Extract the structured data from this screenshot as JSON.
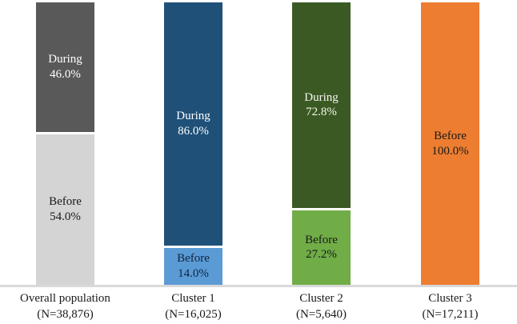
{
  "chart_data": {
    "type": "bar",
    "subtype": "stacked-column-100pct",
    "title": "",
    "xlabel": "",
    "ylabel": "",
    "ylim": [
      0,
      100
    ],
    "grid": false,
    "legend_position": "none (series labels drawn inside segments)",
    "categories": [
      "Overall population",
      "Cluster 1",
      "Cluster 2",
      "Cluster 3"
    ],
    "category_sublabels": [
      "(N=38,876)",
      "(N=16,025)",
      "(N=5,640)",
      "(N=17,211)"
    ],
    "series": [
      {
        "name": "Before",
        "values": [
          54.0,
          14.0,
          27.2,
          100.0
        ]
      },
      {
        "name": "During",
        "values": [
          46.0,
          86.0,
          72.8,
          0.0
        ]
      }
    ],
    "colors": {
      "during_gray": "#595959",
      "before_gray": "#d4d4d4",
      "during_blue": "#1f5078",
      "before_blue": "#5b9bd5",
      "during_green": "#3b5a23",
      "before_green": "#70ad47",
      "before_orange": "#ed7d31",
      "axis_line": "#d9d9d9"
    },
    "bars": [
      {
        "category": "Overall population",
        "sublabel": "(N=38,876)",
        "segments": [
          {
            "label": "During",
            "value": 46.0,
            "value_label": "46.0%",
            "color": "#595959",
            "text_color": "#ffffff"
          },
          {
            "label": "Before",
            "value": 54.0,
            "value_label": "54.0%",
            "color": "#d4d4d4",
            "text_color": "#1a1a1a"
          }
        ]
      },
      {
        "category": "Cluster 1",
        "sublabel": "(N=16,025)",
        "segments": [
          {
            "label": "During",
            "value": 86.0,
            "value_label": "86.0%",
            "color": "#1f5078",
            "text_color": "#ffffff"
          },
          {
            "label": "Before",
            "value": 14.0,
            "value_label": "14.0%",
            "color": "#5b9bd5",
            "text_color": "#10243e"
          }
        ]
      },
      {
        "category": "Cluster 2",
        "sublabel": "(N=5,640)",
        "segments": [
          {
            "label": "During",
            "value": 72.8,
            "value_label": "72.8%",
            "color": "#3b5a23",
            "text_color": "#f5f5f0"
          },
          {
            "label": "Before",
            "value": 27.2,
            "value_label": "27.2%",
            "color": "#70ad47",
            "text_color": "#1a1a1a"
          }
        ]
      },
      {
        "category": "Cluster 3",
        "sublabel": "(N=17,211)",
        "segments": [
          {
            "label": "Before",
            "value": 100.0,
            "value_label": "100.0%",
            "color": "#ed7d31",
            "text_color": "#1a1a1a"
          }
        ]
      }
    ]
  }
}
